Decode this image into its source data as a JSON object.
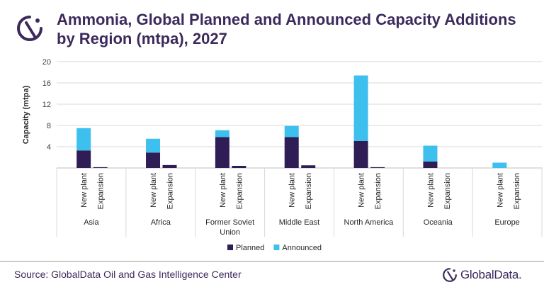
{
  "title": "Ammonia, Global Planned and Announced Capacity Additions by Region (mtpa), 2027",
  "source": "Source: GlobalData Oil and Gas Intelligence Center",
  "brand": "GlobalData.",
  "colors": {
    "planned": "#2e1e55",
    "announced": "#3ec0ef",
    "title": "#3c2a5c"
  },
  "chart_data": {
    "type": "bar",
    "stacked": true,
    "ylabel": "Capacity (mtpa)",
    "ylim": [
      0,
      20
    ],
    "yticks": [
      4,
      8,
      12,
      16,
      20
    ],
    "grid": true,
    "legend_position": "bottom",
    "groups": [
      {
        "name": "Asia",
        "subcategories": [
          "New plant",
          "Expansion"
        ]
      },
      {
        "name": "Africa",
        "subcategories": [
          "New plant",
          "Expansion"
        ]
      },
      {
        "name": "Former Soviet Union",
        "subcategories": [
          "New plant",
          "Expansion"
        ]
      },
      {
        "name": "Middle East",
        "subcategories": [
          "New plant",
          "Expansion"
        ]
      },
      {
        "name": "North America",
        "subcategories": [
          "New plant",
          "Expansion"
        ]
      },
      {
        "name": "Oceania",
        "subcategories": [
          "New plant",
          "Expansion"
        ]
      },
      {
        "name": "Europe",
        "subcategories": [
          "New plant",
          "Expansion"
        ]
      }
    ],
    "series": [
      {
        "name": "Planned",
        "values": [
          [
            3.3,
            0.15
          ],
          [
            2.9,
            0.55
          ],
          [
            5.8,
            0.4
          ],
          [
            5.8,
            0.5
          ],
          [
            5.1,
            0.15
          ],
          [
            1.2,
            0.0
          ],
          [
            0.0,
            0.0
          ]
        ]
      },
      {
        "name": "Announced",
        "values": [
          [
            4.2,
            0.0
          ],
          [
            2.6,
            0.0
          ],
          [
            1.3,
            0.0
          ],
          [
            2.1,
            0.0
          ],
          [
            12.3,
            0.0
          ],
          [
            3.0,
            0.0
          ],
          [
            1.0,
            0.0
          ]
        ]
      }
    ]
  }
}
